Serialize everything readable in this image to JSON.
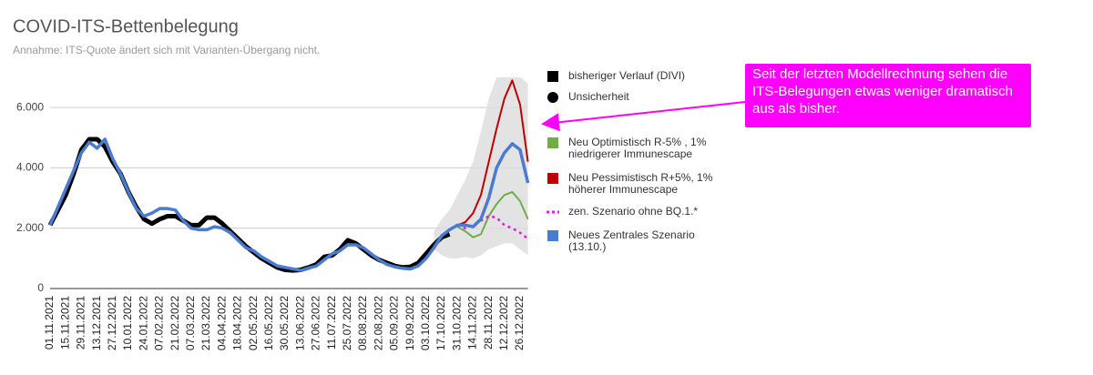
{
  "chart_data": {
    "type": "line",
    "title": "COVID-ITS-Bettenbelegung",
    "subtitle": "Annahme: ITS-Quote ändert sich mit Varianten-Übergang nicht.",
    "annotation": "Seit der letzten Modellrechnung sehen die ITS-Belegungen etwas weniger dramatisch aus als bisher.",
    "categories": [
      "01.11.2021",
      null,
      "15.11.2021",
      null,
      "29.11.2021",
      null,
      "13.12.2021",
      null,
      "27.12.2021",
      null,
      "10.01.2022",
      null,
      "24.01.2022",
      null,
      "07.02.2022",
      null,
      "21.02.2022",
      null,
      "07.03.2022",
      null,
      "21.03.2022",
      null,
      "04.04.2022",
      null,
      "18.04.2022",
      null,
      "02.05.2022",
      null,
      "16.05.2022",
      null,
      "30.05.2022",
      null,
      "13.06.2022",
      null,
      "27.06.2022",
      null,
      "11.07.2022",
      null,
      "25.07.2022",
      null,
      "08.08.2022",
      null,
      "22.08.2022",
      null,
      "05.09.2022",
      null,
      "19.09.2022",
      null,
      "03.10.2022",
      null,
      "17.10.2022",
      null,
      "31.10.2022",
      null,
      "14.11.2022",
      null,
      "28.11.2022",
      null,
      "12.12.2022",
      null,
      "26.12.2022",
      null
    ],
    "ylim": [
      0,
      7000
    ],
    "yticks": [
      0,
      {
        "value": 2000,
        "label": "2.000"
      },
      {
        "value": 4000,
        "label": "4.000"
      },
      {
        "value": 6000,
        "label": "6.000"
      }
    ],
    "grid": true,
    "band": {
      "name": "Unsicherheit",
      "color": "#dcdcdc",
      "low": [
        null,
        null,
        null,
        null,
        null,
        null,
        null,
        null,
        null,
        null,
        null,
        null,
        null,
        null,
        null,
        null,
        null,
        null,
        null,
        null,
        null,
        null,
        null,
        null,
        null,
        null,
        null,
        null,
        null,
        null,
        null,
        null,
        null,
        null,
        null,
        null,
        null,
        null,
        null,
        null,
        null,
        null,
        null,
        null,
        null,
        null,
        null,
        null,
        null,
        1300,
        1100,
        1000,
        1000,
        1050,
        1000,
        1100,
        1300,
        1400,
        1500,
        1500,
        1300,
        1100
      ],
      "high": [
        null,
        null,
        null,
        null,
        null,
        null,
        null,
        null,
        null,
        null,
        null,
        null,
        null,
        null,
        null,
        null,
        null,
        null,
        null,
        null,
        null,
        null,
        null,
        null,
        null,
        null,
        null,
        null,
        null,
        null,
        null,
        null,
        null,
        null,
        null,
        null,
        null,
        null,
        null,
        null,
        null,
        null,
        null,
        null,
        null,
        null,
        null,
        null,
        null,
        1900,
        2300,
        2600,
        3100,
        3600,
        4200,
        5200,
        6300,
        7000,
        7000,
        7000,
        7000,
        6800
      ]
    },
    "series": [
      {
        "name": "bisheriger Verlauf (DIVI)",
        "color": "#000000",
        "width": 5,
        "dotted": false,
        "values": [
          2100,
          2600,
          3100,
          3800,
          4600,
          4950,
          4950,
          4700,
          4200,
          3800,
          3200,
          2700,
          2300,
          2150,
          2300,
          2400,
          2400,
          2250,
          2100,
          2100,
          2350,
          2350,
          2150,
          1900,
          1650,
          1400,
          1200,
          1000,
          850,
          700,
          620,
          600,
          620,
          700,
          800,
          1050,
          1100,
          1300,
          1600,
          1500,
          1300,
          1100,
          950,
          850,
          750,
          700,
          720,
          850,
          1150,
          1450,
          1700,
          1800,
          null,
          null,
          null,
          null,
          null,
          null,
          null,
          null,
          null,
          null
        ]
      },
      {
        "name": "Neu Optimistisch R-5% , 1% niedrigerer Immunescape",
        "color": "#70ad47",
        "width": 2,
        "dotted": false,
        "values": [
          null,
          null,
          null,
          null,
          null,
          null,
          null,
          null,
          null,
          null,
          null,
          null,
          null,
          null,
          null,
          null,
          null,
          null,
          null,
          null,
          null,
          null,
          null,
          null,
          null,
          null,
          null,
          null,
          null,
          null,
          null,
          null,
          null,
          null,
          null,
          null,
          null,
          null,
          null,
          null,
          null,
          null,
          null,
          null,
          null,
          null,
          null,
          null,
          null,
          null,
          null,
          null,
          2050,
          1900,
          1700,
          1800,
          2400,
          2800,
          3100,
          3200,
          2900,
          2300
        ]
      },
      {
        "name": "Neu Pessimistisch R+5%, 1% höherer Immunescape",
        "color": "#c00000",
        "width": 2,
        "dotted": false,
        "values": [
          null,
          null,
          null,
          null,
          null,
          null,
          null,
          null,
          null,
          null,
          null,
          null,
          null,
          null,
          null,
          null,
          null,
          null,
          null,
          null,
          null,
          null,
          null,
          null,
          null,
          null,
          null,
          null,
          null,
          null,
          null,
          null,
          null,
          null,
          null,
          null,
          null,
          null,
          null,
          null,
          null,
          null,
          null,
          null,
          null,
          null,
          null,
          null,
          null,
          null,
          null,
          null,
          2100,
          2200,
          2500,
          3100,
          4200,
          5300,
          6300,
          6900,
          6100,
          4200
        ]
      },
      {
        "name": "zen. Szenario ohne BQ.1.*",
        "color": "#e020e0",
        "width": 2.5,
        "dotted": true,
        "values": [
          null,
          null,
          null,
          null,
          null,
          null,
          null,
          null,
          null,
          null,
          null,
          null,
          null,
          null,
          null,
          null,
          null,
          null,
          null,
          null,
          null,
          null,
          null,
          null,
          null,
          null,
          null,
          null,
          null,
          null,
          null,
          null,
          null,
          null,
          null,
          null,
          null,
          null,
          null,
          null,
          null,
          null,
          null,
          null,
          null,
          null,
          null,
          null,
          null,
          null,
          null,
          null,
          2100,
          2000,
          2100,
          2250,
          2400,
          2350,
          2100,
          2000,
          1850,
          1650
        ]
      },
      {
        "name": "Neues Zentrales Szenario (13.10.)",
        "color": "#4a7bd0",
        "width": 3.5,
        "dotted": false,
        "values": [
          2100,
          2700,
          3300,
          3900,
          4500,
          4850,
          4650,
          4950,
          4300,
          3800,
          3200,
          2650,
          2400,
          2500,
          2650,
          2650,
          2600,
          2250,
          2000,
          1950,
          1950,
          2050,
          2000,
          1850,
          1600,
          1350,
          1250,
          1050,
          900,
          750,
          700,
          650,
          600,
          680,
          750,
          950,
          1150,
          1250,
          1450,
          1450,
          1350,
          1150,
          950,
          800,
          720,
          670,
          650,
          750,
          1000,
          1350,
          1750,
          1950,
          2100,
          2100,
          2050,
          2300,
          3000,
          4000,
          4500,
          4800,
          4600,
          3500
        ]
      }
    ]
  }
}
